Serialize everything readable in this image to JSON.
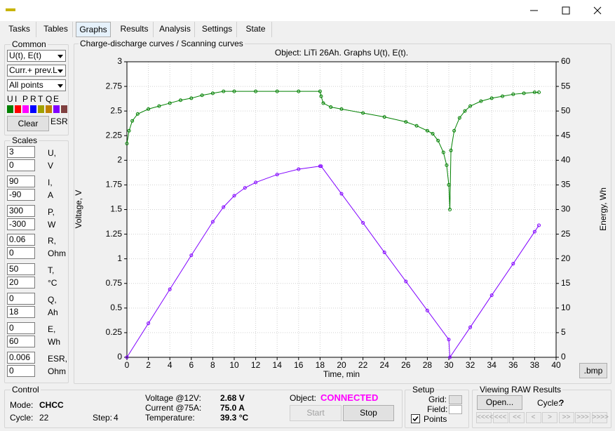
{
  "tabs": [
    "Tasks",
    "Tables",
    "Graphs",
    "Results",
    "Analysis",
    "Settings",
    "State"
  ],
  "active_tab": 2,
  "common": {
    "title": "Common",
    "selects": [
      "U(t), E(t)",
      "Curr.+ prev.L",
      "All points"
    ],
    "legend": [
      {
        "name": "U",
        "color": "#008000"
      },
      {
        "name": "I",
        "color": "#ff0000"
      },
      {
        "name": "P",
        "color": "#ff00ff"
      },
      {
        "name": "R",
        "color": "#0000ff"
      },
      {
        "name": "T",
        "color": "#a0a000"
      },
      {
        "name": "Q",
        "color": "#c08000"
      },
      {
        "name": "E",
        "color": "#8000ff"
      },
      {
        "name": "ESR",
        "color": "#804040"
      }
    ],
    "clear": "Clear"
  },
  "scales": {
    "title": "Scales",
    "rows": [
      {
        "max": "3",
        "min": "0",
        "name": "U,",
        "unit": "V"
      },
      {
        "max": "90",
        "min": "-90",
        "name": "I,",
        "unit": "A"
      },
      {
        "max": "300",
        "min": "-300",
        "name": "P,",
        "unit": "W"
      },
      {
        "max": "0.06",
        "min": "0",
        "name": "R,",
        "unit": "Ohm"
      },
      {
        "max": "50",
        "min": "20",
        "name": "T,",
        "unit": "°C"
      },
      {
        "max": "0",
        "min": "18",
        "name": "Q,",
        "unit": "Ah"
      },
      {
        "max": "0",
        "min": "60",
        "name": "E,",
        "unit": "Wh"
      },
      {
        "max": "0.006",
        "min": "0",
        "name": "ESR,",
        "unit": "Ohm"
      }
    ]
  },
  "graph_group": "Charge-discharge curves / Scanning curves",
  "bmp_button": ".bmp",
  "chart_data": {
    "type": "line",
    "title": "Object: LiTi 26Ah. Graphs U(t), E(t).",
    "x_label": "Time, min",
    "y_label": "Voltage, V",
    "y2_label": "Energy, Wh",
    "xlim": [
      0,
      40
    ],
    "xticks": [
      0,
      2,
      4,
      6,
      8,
      10,
      12,
      14,
      16,
      18,
      20,
      22,
      24,
      26,
      28,
      30,
      32,
      34,
      36,
      38,
      40
    ],
    "ylim": [
      0,
      3
    ],
    "yticks": [
      0,
      0.25,
      0.5,
      0.75,
      1,
      1.25,
      1.5,
      1.75,
      2,
      2.25,
      2.5,
      2.75,
      3
    ],
    "y2lim": [
      0,
      60
    ],
    "y2ticks": [
      0,
      5,
      10,
      15,
      20,
      25,
      30,
      35,
      40,
      45,
      50,
      55,
      60
    ],
    "grid": true,
    "points": true,
    "series": [
      {
        "name": "U",
        "color": "#008000",
        "x": [
          0,
          0.2,
          0.5,
          1,
          2,
          3,
          4,
          5,
          6,
          7,
          8,
          9,
          10,
          12,
          14,
          16,
          18,
          18.1,
          18.3,
          19,
          20,
          22,
          24,
          26,
          27,
          28,
          28.5,
          29,
          29.5,
          29.8,
          30,
          30.1,
          30.2,
          30.5,
          31,
          31.5,
          32,
          33,
          34,
          35,
          36,
          37,
          38,
          38.4
        ],
        "values": [
          2.17,
          2.3,
          2.4,
          2.47,
          2.52,
          2.55,
          2.58,
          2.61,
          2.63,
          2.66,
          2.68,
          2.7,
          2.7,
          2.7,
          2.7,
          2.7,
          2.7,
          2.65,
          2.58,
          2.54,
          2.52,
          2.48,
          2.44,
          2.39,
          2.35,
          2.3,
          2.27,
          2.2,
          2.08,
          1.95,
          1.75,
          1.5,
          2.1,
          2.3,
          2.43,
          2.5,
          2.55,
          2.6,
          2.63,
          2.65,
          2.67,
          2.68,
          2.69,
          2.69
        ]
      },
      {
        "name": "E",
        "color": "#8000ff",
        "axis": "y2",
        "x": [
          0,
          2,
          4,
          6,
          8,
          9,
          10,
          11,
          12,
          14,
          16,
          18,
          18.1,
          20,
          22,
          24,
          26,
          28,
          30,
          30.1,
          32,
          34,
          36,
          38,
          38.4
        ],
        "values": [
          0,
          6.9,
          13.8,
          20.7,
          27.5,
          30.5,
          32.8,
          34.4,
          35.5,
          37.1,
          38.2,
          38.8,
          38.8,
          33.2,
          27.3,
          21.3,
          15.4,
          9.5,
          3.6,
          0,
          6.1,
          12.6,
          19,
          25.5,
          26.8
        ]
      }
    ]
  },
  "control": {
    "title": "Control",
    "mode_label": "Mode:",
    "mode": "CHCC",
    "cycle_label": "Cycle:",
    "cycle": "22",
    "step_label": "Step:",
    "step": "4",
    "voltage_label": "Voltage @12V:",
    "voltage": "2.68 V",
    "current_label": "Current @75A:",
    "current": "75.0 A",
    "temperature_label": "Temperature:",
    "temperature": "39.3 °C",
    "object_label": "Object:",
    "object_status": "CONNECTED",
    "start": "Start",
    "stop": "Stop"
  },
  "setup": {
    "title": "Setup",
    "grid": "Grid:",
    "field": "Field:",
    "points": "Points"
  },
  "raw": {
    "title": "Viewing RAW Results",
    "open": "Open...",
    "cycle_label": "Cycle:",
    "cycle": "?",
    "nav": [
      "<<<<",
      "<<<",
      "<<",
      "<",
      ">",
      ">>",
      ">>>",
      ">>>>"
    ]
  }
}
